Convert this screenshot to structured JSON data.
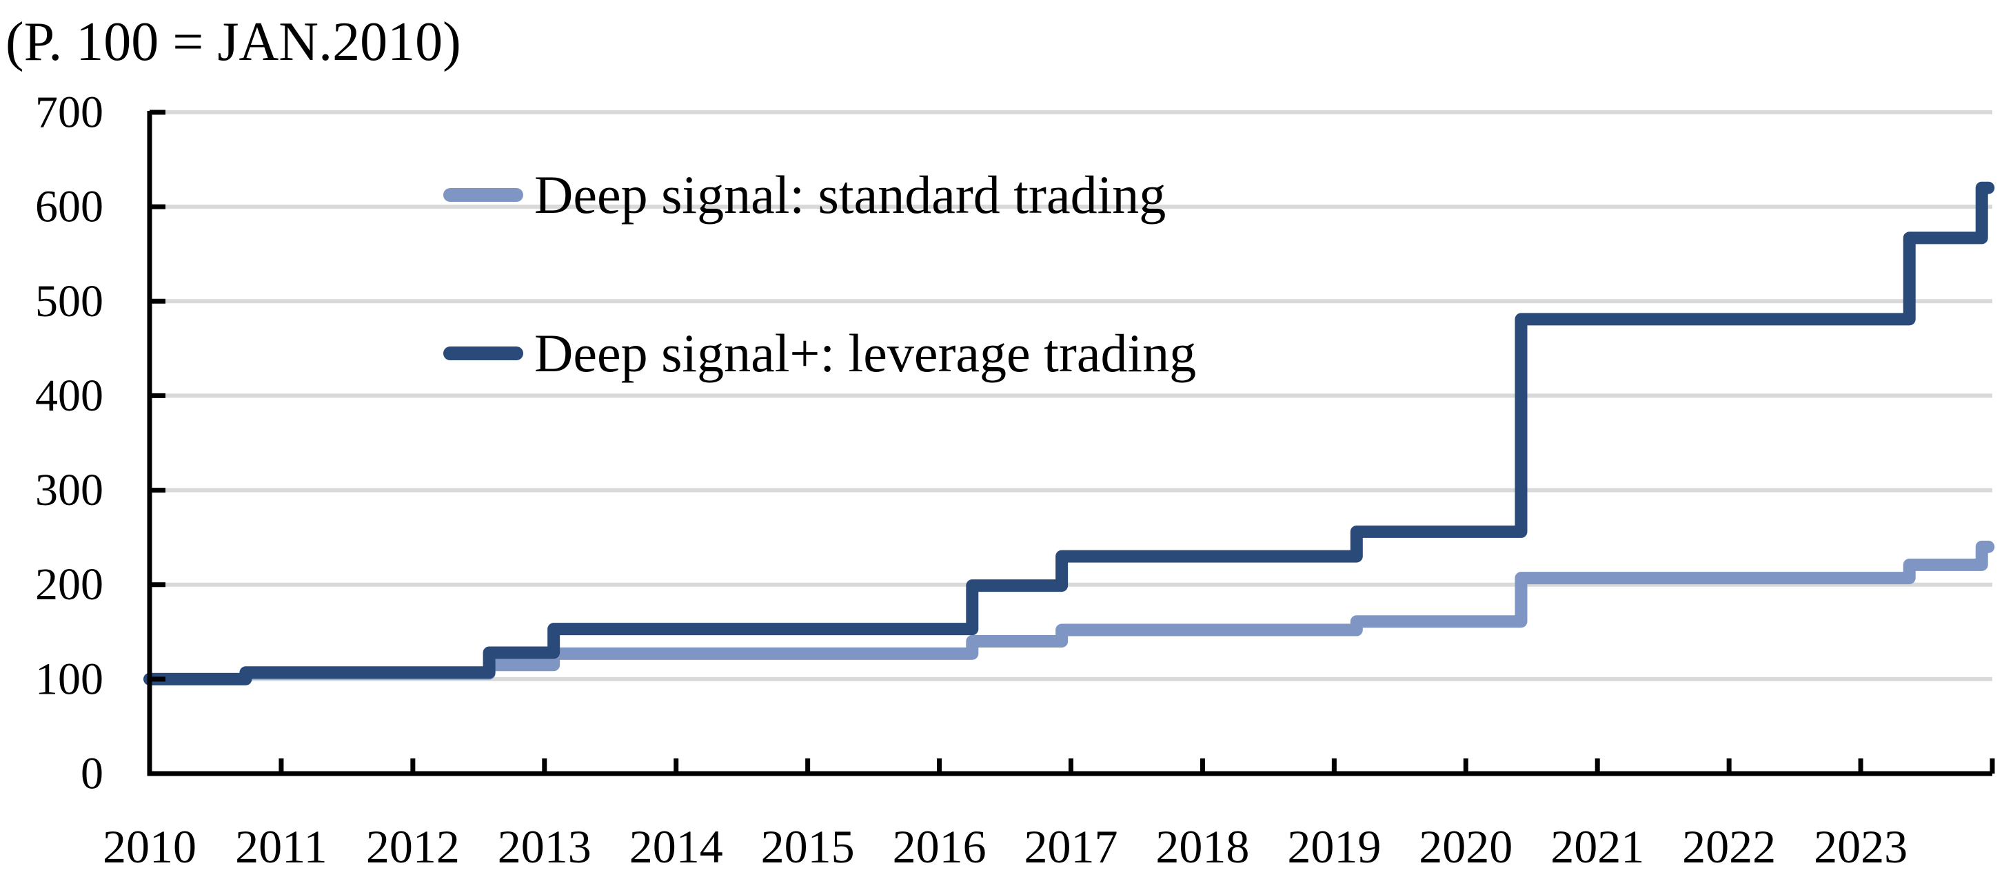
{
  "page": {
    "background": "#ffffff",
    "kind": "indexed performance step chart"
  },
  "chart_data": {
    "type": "line",
    "subtype": "step-after",
    "title": "(P. 100 = JAN.2010)",
    "x_axis": {
      "start_year": 2010,
      "end_year": 2024,
      "tick_labels": [
        "2010",
        "2011",
        "2012",
        "2013",
        "2014",
        "2015",
        "2016",
        "2017",
        "2018",
        "2019",
        "2020",
        "2021",
        "2022",
        "2023"
      ]
    },
    "y_axis": {
      "min": 0,
      "max": 700,
      "tick_interval": 100,
      "tick_labels": [
        "0",
        "100",
        "200",
        "300",
        "400",
        "500",
        "600",
        "700"
      ]
    },
    "grid": true,
    "legend_position": "inside-top-left",
    "plot_end_x": 2023.97,
    "series": [
      {
        "name": "Deep signal: standard trading",
        "color": "#7f96c4",
        "steps": [
          [
            2010.0,
            100
          ],
          [
            2010.73,
            106
          ],
          [
            2012.58,
            115
          ],
          [
            2013.07,
            127
          ],
          [
            2016.25,
            140
          ],
          [
            2016.93,
            152
          ],
          [
            2019.17,
            161
          ],
          [
            2020.42,
            207
          ],
          [
            2023.37,
            221
          ],
          [
            2023.92,
            240
          ]
        ]
      },
      {
        "name": "Deep signal+: leverage trading",
        "color": "#2a4a7a",
        "steps": [
          [
            2010.0,
            100
          ],
          [
            2010.73,
            107
          ],
          [
            2012.58,
            128
          ],
          [
            2013.07,
            153
          ],
          [
            2016.25,
            199
          ],
          [
            2016.93,
            230
          ],
          [
            2019.17,
            256
          ],
          [
            2020.42,
            481
          ],
          [
            2023.37,
            567
          ],
          [
            2023.92,
            620
          ]
        ]
      }
    ],
    "colors": {
      "gridline": "#d9d9d9",
      "axis": "#000000",
      "text": "#000000"
    }
  },
  "legend": {
    "items": [
      {
        "label": "Deep signal: standard trading",
        "color": "#7f96c4"
      },
      {
        "label": "Deep signal+: leverage trading",
        "color": "#2a4a7a"
      }
    ]
  }
}
